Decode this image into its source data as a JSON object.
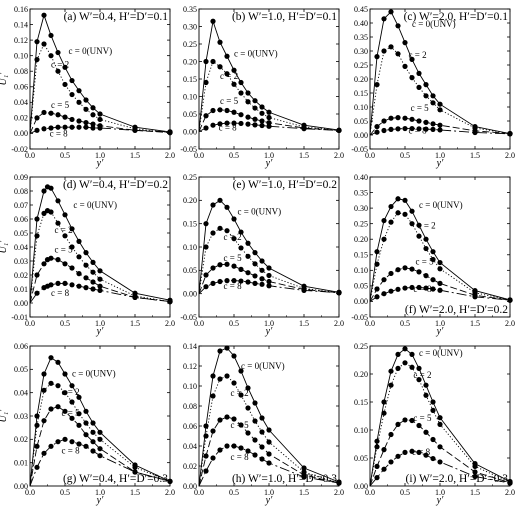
{
  "figure": {
    "background": "#ffffff",
    "line_color": "#000000"
  },
  "chart_data": [
    {
      "type": "line",
      "title": "(a) W′=0.4, H′=D′=0.1",
      "xlabel": "y′",
      "ylabel": "U₁′",
      "xlim": [
        0,
        2.0
      ],
      "ylim": [
        -0.02,
        0.16
      ],
      "xticks": [
        "0.0",
        "0.5",
        "1.0",
        "1.5",
        "2.0"
      ],
      "yticks": [
        "-0.02",
        "0.00",
        "0.02",
        "0.04",
        "0.06",
        "0.08",
        "0.10",
        "0.12",
        "0.14",
        "0.16"
      ],
      "x": [
        0,
        0.1,
        0.2,
        0.3,
        0.4,
        0.5,
        0.6,
        0.7,
        0.8,
        0.9,
        1.0,
        1.5,
        2.0
      ],
      "series": [
        {
          "name": "c = 0(UNV)",
          "values": [
            0,
            0.118,
            0.152,
            0.126,
            0.104,
            0.085,
            0.068,
            0.055,
            0.043,
            0.033,
            0.025,
            0.008,
            0.002
          ]
        },
        {
          "name": "c = 2",
          "values": [
            0,
            0.095,
            0.115,
            0.1,
            0.08,
            0.063,
            0.05,
            0.04,
            0.031,
            0.024,
            0.018,
            0.006,
            0.001
          ]
        },
        {
          "name": "c = 5",
          "values": [
            0,
            0.02,
            0.027,
            0.026,
            0.024,
            0.021,
            0.018,
            0.016,
            0.014,
            0.012,
            0.01,
            0.004,
            0.001
          ]
        },
        {
          "name": "c = 8",
          "values": [
            0,
            0.004,
            0.006,
            0.007,
            0.008,
            0.008,
            0.008,
            0.008,
            0.008,
            0.007,
            0.007,
            0.004,
            0.002
          ]
        }
      ]
    },
    {
      "type": "line",
      "title": "(b) W′=1.0, H′=D′=0.1",
      "xlabel": "y′",
      "ylabel": "",
      "xlim": [
        0,
        2.0
      ],
      "ylim": [
        -0.05,
        0.35
      ],
      "xticks": [
        "0.0",
        "0.5",
        "1.0",
        "1.5",
        "2.0"
      ],
      "yticks": [
        "-0.05",
        "0.00",
        "0.05",
        "0.10",
        "0.15",
        "0.20",
        "0.25",
        "0.30",
        "0.35"
      ],
      "x": [
        0,
        0.1,
        0.2,
        0.3,
        0.4,
        0.5,
        0.6,
        0.7,
        0.8,
        0.9,
        1.0,
        1.5,
        2.0
      ],
      "series": [
        {
          "name": "c = 0(UNV)",
          "values": [
            0,
            0.2,
            0.315,
            0.255,
            0.215,
            0.175,
            0.14,
            0.11,
            0.088,
            0.07,
            0.055,
            0.018,
            0.004
          ]
        },
        {
          "name": "c = 2",
          "values": [
            0,
            0.14,
            0.2,
            0.185,
            0.165,
            0.135,
            0.11,
            0.085,
            0.067,
            0.052,
            0.04,
            0.013,
            0.003
          ]
        },
        {
          "name": "c = 5",
          "values": [
            0,
            0.045,
            0.06,
            0.062,
            0.06,
            0.055,
            0.048,
            0.041,
            0.035,
            0.03,
            0.025,
            0.01,
            0.003
          ]
        },
        {
          "name": "c = 8",
          "values": [
            0,
            0.01,
            0.018,
            0.022,
            0.024,
            0.024,
            0.023,
            0.021,
            0.019,
            0.017,
            0.015,
            0.008,
            0.003
          ]
        }
      ]
    },
    {
      "type": "line",
      "title": "(c) W′=2.0, H′=D′=0.1",
      "xlabel": "y′",
      "ylabel": "",
      "xlim": [
        0,
        2.0
      ],
      "ylim": [
        -0.05,
        0.45
      ],
      "xticks": [
        "0.0",
        "0.5",
        "1.0",
        "1.5",
        "2.0"
      ],
      "yticks": [
        "-0.05",
        "0.00",
        "0.05",
        "0.10",
        "0.15",
        "0.20",
        "0.25",
        "0.30",
        "0.35",
        "0.40",
        "0.45"
      ],
      "x": [
        0,
        0.1,
        0.2,
        0.3,
        0.4,
        0.5,
        0.6,
        0.7,
        0.8,
        0.9,
        1.0,
        1.5,
        2.0
      ],
      "series": [
        {
          "name": "c = 0(UNV)",
          "values": [
            0,
            0.28,
            0.415,
            0.44,
            0.39,
            0.33,
            0.27,
            0.22,
            0.18,
            0.14,
            0.11,
            0.03,
            0.005
          ]
        },
        {
          "name": "c = 2",
          "values": [
            0,
            0.18,
            0.3,
            0.315,
            0.29,
            0.245,
            0.205,
            0.17,
            0.14,
            0.115,
            0.09,
            0.025,
            0.005
          ]
        },
        {
          "name": "c = 5",
          "values": [
            0,
            0.03,
            0.05,
            0.06,
            0.062,
            0.06,
            0.056,
            0.05,
            0.045,
            0.04,
            0.035,
            0.015,
            0.005
          ]
        },
        {
          "name": "c = 8",
          "values": [
            0,
            0.01,
            0.016,
            0.02,
            0.022,
            0.023,
            0.023,
            0.022,
            0.021,
            0.02,
            0.018,
            0.009,
            0.004
          ]
        }
      ]
    },
    {
      "type": "line",
      "title": "(d) W′=0.4, H′=D′=0.2",
      "xlabel": "y′",
      "ylabel": "U₁′",
      "xlim": [
        0,
        2.0
      ],
      "ylim": [
        -0.01,
        0.09
      ],
      "xticks": [
        "0.0",
        "0.5",
        "1.0",
        "1.5",
        "2.0"
      ],
      "yticks": [
        "-0.01",
        "0.00",
        "0.01",
        "0.02",
        "0.03",
        "0.04",
        "0.05",
        "0.06",
        "0.07",
        "0.08",
        "0.09"
      ],
      "x": [
        0,
        0.1,
        0.2,
        0.25,
        0.3,
        0.4,
        0.5,
        0.6,
        0.7,
        0.8,
        0.9,
        1.0,
        1.5,
        2.0
      ],
      "series": [
        {
          "name": "c = 0(UNV)",
          "values": [
            0,
            0.06,
            0.08,
            0.083,
            0.082,
            0.073,
            0.063,
            0.053,
            0.044,
            0.036,
            0.029,
            0.023,
            0.007,
            0.002
          ]
        },
        {
          "name": "c = 2",
          "values": [
            0,
            0.048,
            0.064,
            0.066,
            0.065,
            0.057,
            0.048,
            0.04,
            0.033,
            0.027,
            0.022,
            0.017,
            0.005,
            0.001
          ]
        },
        {
          "name": "c = 5",
          "values": [
            0,
            0.02,
            0.028,
            0.031,
            0.032,
            0.031,
            0.028,
            0.025,
            0.021,
            0.018,
            0.015,
            0.012,
            0.004,
            0.001
          ]
        },
        {
          "name": "c = 8",
          "values": [
            0,
            0.007,
            0.011,
            0.012,
            0.013,
            0.014,
            0.014,
            0.013,
            0.012,
            0.011,
            0.01,
            0.009,
            0.004,
            0.001
          ]
        }
      ]
    },
    {
      "type": "line",
      "title": "(e) W′=1.0, H′=D′=0.2",
      "xlabel": "y′",
      "ylabel": "",
      "xlim": [
        0,
        2.0
      ],
      "ylim": [
        -0.05,
        0.25
      ],
      "xticks": [
        "0.0",
        "0.5",
        "1.0",
        "1.5",
        "2.0"
      ],
      "yticks": [
        "-0.05",
        "0.00",
        "0.05",
        "0.10",
        "0.15",
        "0.20",
        "0.25"
      ],
      "x": [
        0,
        0.1,
        0.2,
        0.3,
        0.4,
        0.5,
        0.6,
        0.7,
        0.8,
        0.9,
        1.0,
        1.5,
        2.0
      ],
      "series": [
        {
          "name": "c = 0(UNV)",
          "values": [
            0,
            0.15,
            0.19,
            0.2,
            0.185,
            0.16,
            0.132,
            0.108,
            0.088,
            0.07,
            0.055,
            0.016,
            0.003
          ]
        },
        {
          "name": "c = 2",
          "values": [
            0,
            0.1,
            0.13,
            0.14,
            0.135,
            0.118,
            0.098,
            0.08,
            0.064,
            0.05,
            0.039,
            0.011,
            0.002
          ]
        },
        {
          "name": "c = 5",
          "values": [
            0,
            0.04,
            0.055,
            0.062,
            0.063,
            0.059,
            0.052,
            0.045,
            0.038,
            0.032,
            0.026,
            0.009,
            0.002
          ]
        },
        {
          "name": "c = 8",
          "values": [
            0,
            0.015,
            0.022,
            0.026,
            0.028,
            0.028,
            0.027,
            0.025,
            0.022,
            0.02,
            0.017,
            0.007,
            0.002
          ]
        }
      ]
    },
    {
      "type": "line",
      "title": "(f) W′=2.0, H′=D′=0.2",
      "xlabel": "y′",
      "ylabel": "",
      "xlim": [
        0,
        2.0
      ],
      "ylim": [
        -0.05,
        0.4
      ],
      "xticks": [
        "0.0",
        "0.5",
        "1.0",
        "1.5",
        "2.0"
      ],
      "yticks": [
        "-0.05",
        "0.00",
        "0.05",
        "0.10",
        "0.15",
        "0.20",
        "0.25",
        "0.30",
        "0.35",
        "0.40"
      ],
      "x": [
        0,
        0.1,
        0.2,
        0.3,
        0.4,
        0.5,
        0.6,
        0.7,
        0.8,
        0.9,
        1.0,
        1.5,
        2.0
      ],
      "series": [
        {
          "name": "c = 0(UNV)",
          "values": [
            0,
            0.16,
            0.26,
            0.305,
            0.33,
            0.325,
            0.29,
            0.245,
            0.2,
            0.16,
            0.125,
            0.035,
            0.005
          ]
        },
        {
          "name": "c = 2",
          "values": [
            0,
            0.12,
            0.2,
            0.255,
            0.285,
            0.28,
            0.25,
            0.21,
            0.17,
            0.135,
            0.105,
            0.028,
            0.004
          ]
        },
        {
          "name": "c = 5",
          "values": [
            0,
            0.04,
            0.07,
            0.09,
            0.102,
            0.108,
            0.104,
            0.095,
            0.083,
            0.07,
            0.058,
            0.02,
            0.004
          ]
        },
        {
          "name": "c = 8",
          "values": [
            0,
            0.015,
            0.025,
            0.033,
            0.039,
            0.043,
            0.045,
            0.045,
            0.043,
            0.04,
            0.036,
            0.015,
            0.004
          ]
        }
      ]
    },
    {
      "type": "line",
      "title": "(g) W′=0.4, H′=D′=0.3",
      "xlabel": "y′",
      "ylabel": "U₁′",
      "xlim": [
        0,
        2.0
      ],
      "ylim": [
        0,
        0.06
      ],
      "xticks": [
        "0.0",
        "0.5",
        "1.0",
        "1.5",
        "2.0"
      ],
      "yticks": [
        "0.00",
        "0.01",
        "0.02",
        "0.03",
        "0.04",
        "0.05",
        "0.06"
      ],
      "x": [
        0,
        0.1,
        0.2,
        0.3,
        0.4,
        0.5,
        0.6,
        0.7,
        0.8,
        0.9,
        1.0,
        1.5,
        2.0
      ],
      "series": [
        {
          "name": "c = 0(UNV)",
          "values": [
            0,
            0.03,
            0.048,
            0.055,
            0.053,
            0.048,
            0.043,
            0.038,
            0.032,
            0.027,
            0.023,
            0.009,
            0.002
          ]
        },
        {
          "name": "c = 2",
          "values": [
            0,
            0.026,
            0.041,
            0.044,
            0.043,
            0.04,
            0.036,
            0.031,
            0.027,
            0.023,
            0.02,
            0.008,
            0.002
          ]
        },
        {
          "name": "c = 5",
          "values": [
            0,
            0.017,
            0.028,
            0.033,
            0.034,
            0.032,
            0.029,
            0.026,
            0.022,
            0.019,
            0.016,
            0.006,
            0.002
          ]
        },
        {
          "name": "c = 8",
          "values": [
            0,
            0.008,
            0.014,
            0.017,
            0.019,
            0.02,
            0.019,
            0.018,
            0.017,
            0.015,
            0.013,
            0.006,
            0.002
          ]
        }
      ]
    },
    {
      "type": "line",
      "title": "(h) W′=1.0, H′=D′=0.3",
      "xlabel": "y′",
      "ylabel": "",
      "xlim": [
        0,
        2.0
      ],
      "ylim": [
        0,
        0.14
      ],
      "xticks": [
        "0.0",
        "0.5",
        "1.0",
        "1.5",
        "2.0"
      ],
      "yticks": [
        "0.00",
        "0.02",
        "0.04",
        "0.06",
        "0.08",
        "0.10",
        "0.12",
        "0.14"
      ],
      "x": [
        0,
        0.1,
        0.2,
        0.3,
        0.4,
        0.5,
        0.6,
        0.7,
        0.8,
        0.9,
        1.0,
        1.5,
        2.0
      ],
      "series": [
        {
          "name": "c = 0(UNV)",
          "values": [
            0,
            0.06,
            0.11,
            0.135,
            0.138,
            0.13,
            0.115,
            0.098,
            0.083,
            0.068,
            0.056,
            0.018,
            0.004
          ]
        },
        {
          "name": "c = 2",
          "values": [
            0,
            0.05,
            0.09,
            0.107,
            0.11,
            0.103,
            0.091,
            0.078,
            0.065,
            0.054,
            0.044,
            0.014,
            0.003
          ]
        },
        {
          "name": "c = 5",
          "values": [
            0,
            0.03,
            0.055,
            0.066,
            0.069,
            0.067,
            0.061,
            0.053,
            0.046,
            0.039,
            0.032,
            0.011,
            0.003
          ]
        },
        {
          "name": "c = 8",
          "values": [
            0,
            0.015,
            0.028,
            0.036,
            0.04,
            0.04,
            0.038,
            0.035,
            0.031,
            0.027,
            0.023,
            0.009,
            0.003
          ]
        }
      ]
    },
    {
      "type": "line",
      "title": "(i) W′=2.0, H′=D′=0.3",
      "xlabel": "y′",
      "ylabel": "",
      "xlim": [
        0,
        2.0
      ],
      "ylim": [
        0,
        0.25
      ],
      "xticks": [
        "0.0",
        "0.5",
        "1.0",
        "1.5",
        "2.0"
      ],
      "yticks": [
        "0.00",
        "0.05",
        "0.10",
        "0.15",
        "0.20",
        "0.25"
      ],
      "x": [
        0,
        0.1,
        0.2,
        0.3,
        0.4,
        0.5,
        0.6,
        0.7,
        0.8,
        0.9,
        1.0,
        1.5,
        2.0
      ],
      "series": [
        {
          "name": "c = 0(UNV)",
          "values": [
            0,
            0.08,
            0.15,
            0.205,
            0.235,
            0.245,
            0.235,
            0.21,
            0.18,
            0.15,
            0.122,
            0.04,
            0.008
          ]
        },
        {
          "name": "c = 2",
          "values": [
            0,
            0.07,
            0.13,
            0.18,
            0.21,
            0.22,
            0.212,
            0.19,
            0.162,
            0.135,
            0.11,
            0.035,
            0.007
          ]
        },
        {
          "name": "c = 5",
          "values": [
            0,
            0.035,
            0.065,
            0.092,
            0.11,
            0.118,
            0.117,
            0.108,
            0.096,
            0.083,
            0.07,
            0.025,
            0.006
          ]
        },
        {
          "name": "c = 8",
          "values": [
            0,
            0.015,
            0.03,
            0.043,
            0.053,
            0.06,
            0.062,
            0.06,
            0.055,
            0.049,
            0.043,
            0.017,
            0.005
          ]
        }
      ]
    }
  ]
}
